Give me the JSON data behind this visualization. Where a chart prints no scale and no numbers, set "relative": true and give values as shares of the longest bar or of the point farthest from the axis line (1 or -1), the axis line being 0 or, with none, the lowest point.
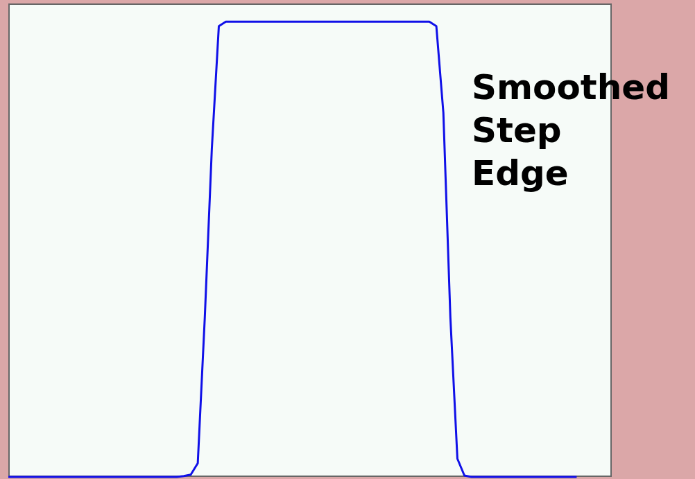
{
  "chart_data": {
    "type": "line",
    "relative": true,
    "annotations": [
      "Smoothed Step Edge"
    ],
    "categories": [
      null,
      null,
      null,
      null,
      null,
      null,
      null,
      null,
      null,
      null,
      null,
      null,
      null,
      null,
      null,
      null,
      null,
      null,
      null,
      null,
      null,
      null,
      null,
      null,
      null,
      null,
      null,
      null,
      null,
      null,
      null,
      null,
      null,
      null,
      null,
      null,
      null,
      null,
      null,
      null,
      null,
      null,
      null,
      null,
      null,
      null,
      null,
      null,
      null,
      null,
      null,
      null,
      null,
      null,
      null,
      null,
      null,
      null,
      null,
      null,
      null,
      null,
      null,
      null,
      null,
      null,
      null,
      null,
      null,
      null,
      null,
      null,
      null,
      null,
      null,
      null,
      null,
      null,
      null,
      null,
      null,
      null,
      null,
      null,
      null,
      null,
      null
    ],
    "series": [
      {
        "color": "#1010e8",
        "values": [
          0,
          0,
          0,
          0,
          0,
          0,
          0,
          0,
          0,
          0,
          0,
          0,
          0,
          0,
          0,
          0,
          0,
          0,
          0,
          0,
          0,
          0,
          0,
          0,
          0,
          0.002,
          0.005,
          0.03,
          0.35,
          0.72,
          0.99,
          1,
          1,
          1,
          1,
          1,
          1,
          1,
          1,
          1,
          1,
          1,
          1,
          1,
          1,
          1,
          1,
          1,
          1,
          1,
          1,
          1,
          1,
          1,
          1,
          1,
          1,
          1,
          1,
          1,
          1,
          0.99,
          0.8,
          0.35,
          0.04,
          0.003,
          0,
          0,
          0,
          0,
          0,
          0,
          0,
          0,
          0,
          0,
          0,
          0,
          0,
          0,
          0,
          0,
          null,
          null,
          null,
          null,
          null
        ]
      }
    ]
  }
}
